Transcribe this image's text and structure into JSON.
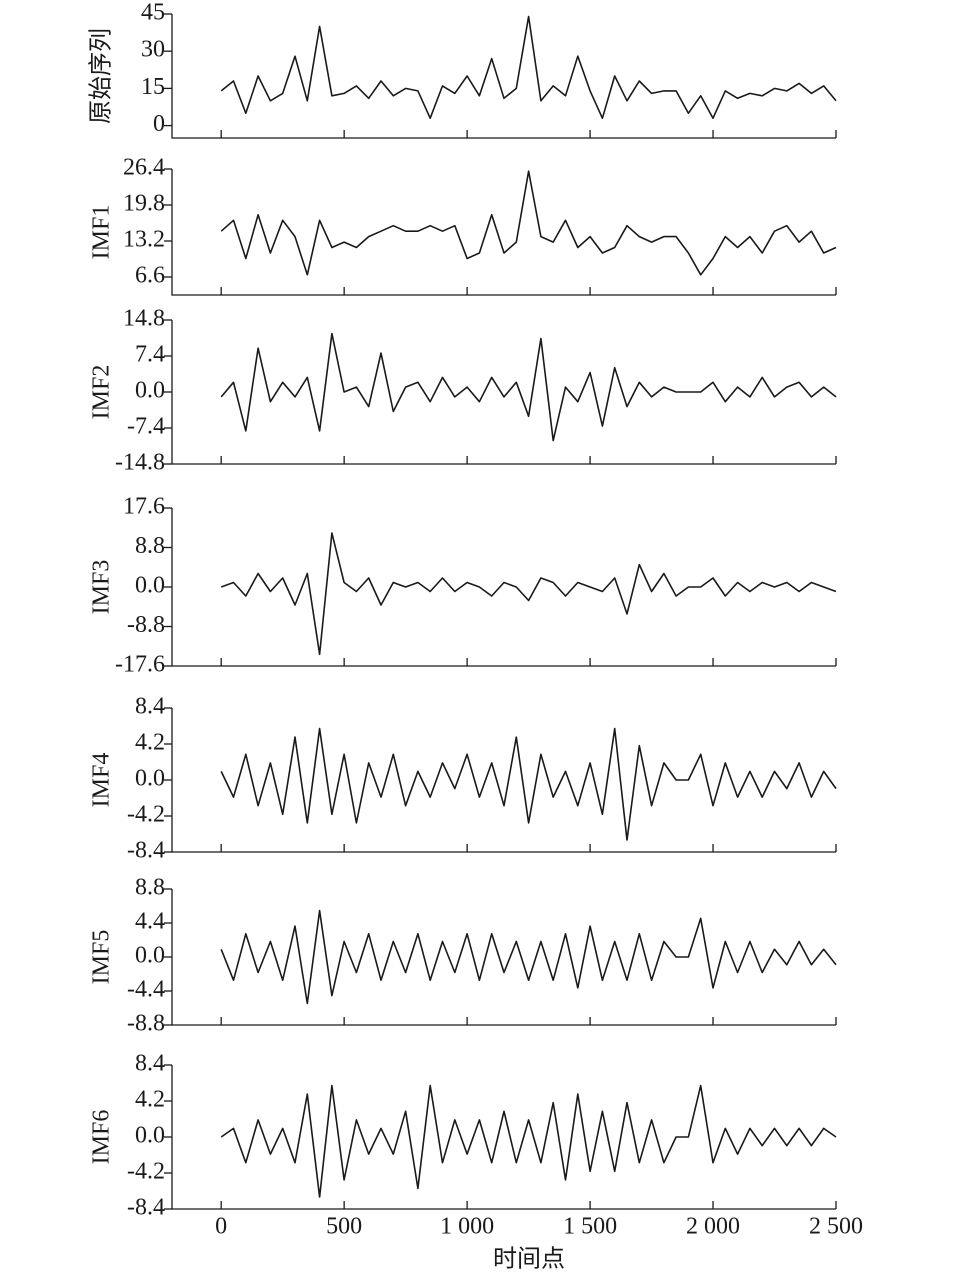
{
  "chart_data": [
    {
      "type": "line",
      "ylabel": "原始序列",
      "color": "#1a1a1a",
      "x": [
        0,
        50,
        100,
        150,
        200,
        250,
        300,
        350,
        400,
        450,
        500,
        550,
        600,
        650,
        700,
        750,
        800,
        850,
        900,
        950,
        1000,
        1050,
        1100,
        1150,
        1200,
        1250,
        1300,
        1350,
        1400,
        1450,
        1500,
        1550,
        1600,
        1650,
        1700,
        1750,
        1800,
        1850,
        1900,
        1950,
        2000,
        2050,
        2100,
        2150,
        2200,
        2250,
        2300,
        2350,
        2400,
        2450,
        2500
      ],
      "values": [
        14,
        18,
        5,
        20,
        10,
        13,
        28,
        10,
        40,
        12,
        13,
        16,
        11,
        18,
        12,
        15,
        14,
        3,
        16,
        13,
        20,
        12,
        27,
        11,
        15,
        44,
        10,
        16,
        12,
        28,
        14,
        3,
        20,
        10,
        18,
        13,
        14,
        14,
        5,
        12,
        3,
        14,
        11,
        13,
        12,
        15,
        14,
        17,
        13,
        16,
        10
      ],
      "ylim": [
        -5,
        45
      ],
      "yticks": [
        0,
        15,
        30,
        45
      ]
    },
    {
      "type": "line",
      "ylabel": "IMF1",
      "color": "#1a1a1a",
      "x": [
        0,
        50,
        100,
        150,
        200,
        250,
        300,
        350,
        400,
        450,
        500,
        550,
        600,
        650,
        700,
        750,
        800,
        850,
        900,
        950,
        1000,
        1050,
        1100,
        1150,
        1200,
        1250,
        1300,
        1350,
        1400,
        1450,
        1500,
        1550,
        1600,
        1650,
        1700,
        1750,
        1800,
        1850,
        1900,
        1950,
        2000,
        2050,
        2100,
        2150,
        2200,
        2250,
        2300,
        2350,
        2400,
        2450,
        2500
      ],
      "values": [
        15,
        17,
        10,
        18,
        11,
        17,
        14,
        7,
        17,
        12,
        13,
        12,
        14,
        15,
        16,
        15,
        15,
        16,
        15,
        16,
        10,
        11,
        18,
        11,
        13,
        26,
        14,
        13,
        17,
        12,
        14,
        11,
        12,
        16,
        14,
        13,
        14,
        14,
        11,
        7,
        10,
        14,
        12,
        14,
        11,
        15,
        16,
        13,
        15,
        11,
        12
      ],
      "ylim": [
        3.3,
        26.4
      ],
      "yticks": [
        6.6,
        13.2,
        19.8,
        26.4
      ]
    },
    {
      "type": "line",
      "ylabel": "IMF2",
      "color": "#1a1a1a",
      "x": [
        0,
        50,
        100,
        150,
        200,
        250,
        300,
        350,
        400,
        450,
        500,
        550,
        600,
        650,
        700,
        750,
        800,
        850,
        900,
        950,
        1000,
        1050,
        1100,
        1150,
        1200,
        1250,
        1300,
        1350,
        1400,
        1450,
        1500,
        1550,
        1600,
        1650,
        1700,
        1750,
        1800,
        1850,
        1900,
        1950,
        2000,
        2050,
        2100,
        2150,
        2200,
        2250,
        2300,
        2350,
        2400,
        2450,
        2500
      ],
      "values": [
        -1,
        2,
        -8,
        9,
        -2,
        2,
        -1,
        3,
        -8,
        12,
        0,
        1,
        -3,
        8,
        -4,
        1,
        2,
        -2,
        3,
        -1,
        1,
        -2,
        3,
        -1,
        2,
        -5,
        11,
        -10,
        1,
        -2,
        4,
        -7,
        5,
        -3,
        2,
        -1,
        1,
        0,
        0,
        0,
        2,
        -2,
        1,
        -1,
        3,
        -1,
        1,
        2,
        -1,
        1,
        -1
      ],
      "ylim": [
        -14.8,
        14.8
      ],
      "yticks": [
        -14.8,
        -7.4,
        {
          "value": 0,
          "label": "0.0"
        },
        7.4,
        14.8
      ]
    },
    {
      "type": "line",
      "ylabel": "IMF3",
      "color": "#1a1a1a",
      "x": [
        0,
        50,
        100,
        150,
        200,
        250,
        300,
        350,
        400,
        450,
        500,
        550,
        600,
        650,
        700,
        750,
        800,
        850,
        900,
        950,
        1000,
        1050,
        1100,
        1150,
        1200,
        1250,
        1300,
        1350,
        1400,
        1450,
        1500,
        1550,
        1600,
        1650,
        1700,
        1750,
        1800,
        1850,
        1900,
        1950,
        2000,
        2050,
        2100,
        2150,
        2200,
        2250,
        2300,
        2350,
        2400,
        2450,
        2500
      ],
      "values": [
        0,
        1,
        -2,
        3,
        -1,
        2,
        -4,
        3,
        -15,
        12,
        1,
        -1,
        2,
        -4,
        1,
        0,
        1,
        -1,
        2,
        -1,
        1,
        0,
        -2,
        1,
        0,
        -3,
        2,
        1,
        -2,
        1,
        0,
        -1,
        2,
        -6,
        5,
        -1,
        3,
        -2,
        0,
        0,
        2,
        -2,
        1,
        -1,
        1,
        0,
        1,
        -1,
        1,
        0,
        -1
      ],
      "ylim": [
        -17.6,
        17.6
      ],
      "yticks": [
        -17.6,
        -8.8,
        {
          "value": 0,
          "label": "0.0"
        },
        8.8,
        17.6
      ]
    },
    {
      "type": "line",
      "ylabel": "IMF4",
      "color": "#1a1a1a",
      "x": [
        0,
        50,
        100,
        150,
        200,
        250,
        300,
        350,
        400,
        450,
        500,
        550,
        600,
        650,
        700,
        750,
        800,
        850,
        900,
        950,
        1000,
        1050,
        1100,
        1150,
        1200,
        1250,
        1300,
        1350,
        1400,
        1450,
        1500,
        1550,
        1600,
        1650,
        1700,
        1750,
        1800,
        1850,
        1900,
        1950,
        2000,
        2050,
        2100,
        2150,
        2200,
        2250,
        2300,
        2350,
        2400,
        2450,
        2500
      ],
      "values": [
        1,
        -2,
        3,
        -3,
        2,
        -4,
        5,
        -5,
        6,
        -4,
        3,
        -5,
        2,
        -2,
        3,
        -3,
        1,
        -2,
        2,
        -1,
        3,
        -2,
        2,
        -3,
        5,
        -5,
        3,
        -2,
        1,
        -3,
        2,
        -4,
        6,
        -7,
        4,
        -3,
        2,
        0,
        0,
        3,
        -3,
        2,
        -2,
        1,
        -2,
        1,
        -1,
        2,
        -2,
        1,
        -1
      ],
      "ylim": [
        -8.4,
        8.4
      ],
      "yticks": [
        -8.4,
        -4.2,
        {
          "value": 0,
          "label": "0.0"
        },
        4.2,
        8.4
      ]
    },
    {
      "type": "line",
      "ylabel": "IMF5",
      "color": "#1a1a1a",
      "x": [
        0,
        50,
        100,
        150,
        200,
        250,
        300,
        350,
        400,
        450,
        500,
        550,
        600,
        650,
        700,
        750,
        800,
        850,
        900,
        950,
        1000,
        1050,
        1100,
        1150,
        1200,
        1250,
        1300,
        1350,
        1400,
        1450,
        1500,
        1550,
        1600,
        1650,
        1700,
        1750,
        1800,
        1850,
        1900,
        1950,
        2000,
        2050,
        2100,
        2150,
        2200,
        2250,
        2300,
        2350,
        2400,
        2450,
        2500
      ],
      "values": [
        1,
        -3,
        3,
        -2,
        2,
        -3,
        4,
        -6,
        6,
        -5,
        2,
        -2,
        3,
        -3,
        2,
        -2,
        3,
        -3,
        2,
        -2,
        3,
        -3,
        3,
        -2,
        2,
        -3,
        2,
        -3,
        3,
        -4,
        4,
        -3,
        2,
        -3,
        3,
        -3,
        2,
        0,
        0,
        5,
        -4,
        2,
        -2,
        2,
        -2,
        1,
        -1,
        2,
        -1,
        1,
        -1
      ],
      "ylim": [
        -8.8,
        8.8
      ],
      "yticks": [
        -8.8,
        -4.4,
        {
          "value": 0,
          "label": "0.0"
        },
        4.4,
        8.8
      ]
    },
    {
      "type": "line",
      "ylabel": "IMF6",
      "color": "#1a1a1a",
      "xlabel": "时间点",
      "x": [
        0,
        50,
        100,
        150,
        200,
        250,
        300,
        350,
        400,
        450,
        500,
        550,
        600,
        650,
        700,
        750,
        800,
        850,
        900,
        950,
        1000,
        1050,
        1100,
        1150,
        1200,
        1250,
        1300,
        1350,
        1400,
        1450,
        1500,
        1550,
        1600,
        1650,
        1700,
        1750,
        1800,
        1850,
        1900,
        1950,
        2000,
        2050,
        2100,
        2150,
        2200,
        2250,
        2300,
        2350,
        2400,
        2450,
        2500
      ],
      "values": [
        0,
        1,
        -3,
        2,
        -2,
        1,
        -3,
        5,
        -7,
        6,
        -5,
        2,
        -2,
        1,
        -2,
        3,
        -6,
        6,
        -3,
        2,
        -2,
        2,
        -3,
        3,
        -3,
        2,
        -3,
        4,
        -5,
        5,
        -4,
        3,
        -4,
        4,
        -3,
        2,
        -3,
        0,
        0,
        6,
        -3,
        1,
        -2,
        1,
        -1,
        1,
        -1,
        1,
        -1,
        1,
        0
      ],
      "ylim": [
        -8.4,
        8.4
      ],
      "yticks": [
        -8.4,
        -4.2,
        {
          "value": 0,
          "label": "0.0"
        },
        4.2,
        8.4
      ],
      "xlim": [
        -200,
        2500
      ],
      "xticks": [
        0,
        500,
        {
          "value": 1000,
          "label": "1 000"
        },
        {
          "value": 1500,
          "label": "1 500"
        },
        {
          "value": 2000,
          "label": "2 000"
        },
        {
          "value": 2500,
          "label": "2 500"
        }
      ]
    }
  ]
}
